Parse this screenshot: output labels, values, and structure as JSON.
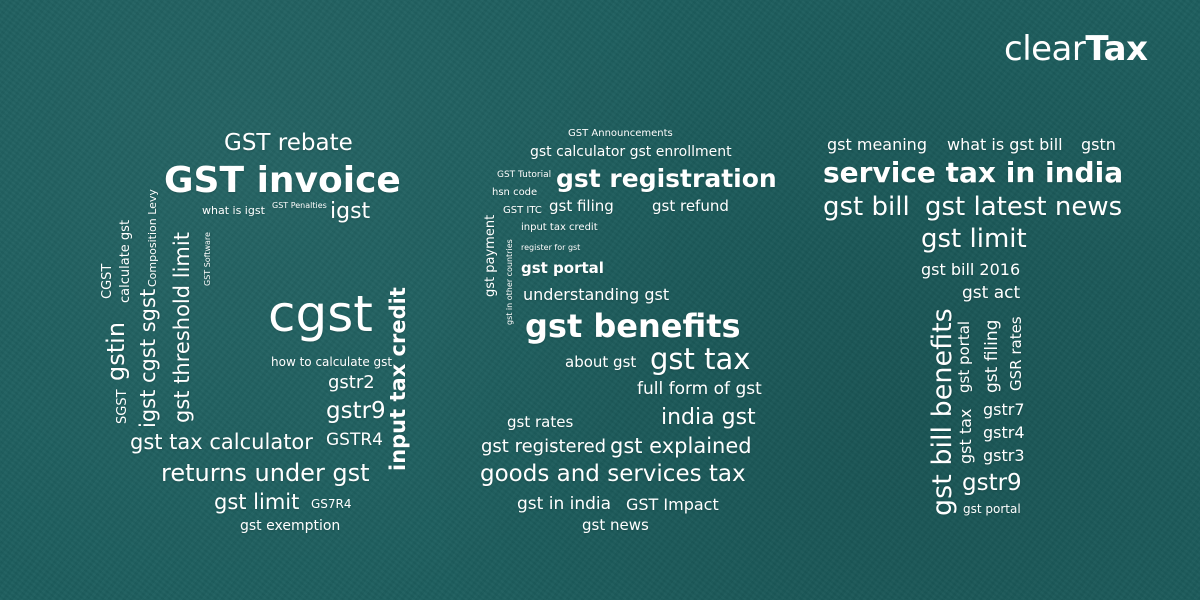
{
  "brand": {
    "light": "clear",
    "bold": "Tax"
  },
  "cloud_g": [
    "GST rebate",
    "GST invoice",
    "what is igst",
    "GST Penalties",
    "igst",
    "GST Software",
    "CGST",
    "calculate gst",
    "Composition Levy",
    "gstin",
    "igst cgst sgst",
    "gst threshold limit",
    "SGST",
    "cgst",
    "how to calculate gst",
    "input tax credit",
    "gstr2",
    "gstr9",
    "GSTR4",
    "gst tax calculator",
    "returns under gst",
    "gst limit",
    "GS7R4",
    "gst exemption"
  ],
  "cloud_s": [
    "GST Announcements",
    "gst calculator gst enrollment",
    "GST Tutorial",
    "gst registration",
    "hsn code",
    "GST ITC",
    "gst filing",
    "gst refund",
    "input tax credit",
    "register for gst",
    "gst payment",
    "gst in other countries",
    "gst portal",
    "understanding gst",
    "gst benefits",
    "about gst",
    "gst tax",
    "full form of gst",
    "gst rates",
    "india gst",
    "gst registered",
    "gst explained",
    "goods and services tax",
    "gst in india",
    "GST Impact",
    "gst news"
  ],
  "cloud_t": [
    "gst meaning",
    "what is gst bill",
    "gstn",
    "service tax in india",
    "gst bill",
    "gst latest news",
    "gst limit",
    "gst bill 2016",
    "gst act",
    "gst bill benefits",
    "gst portal",
    "gst filing",
    "GSR rates",
    "gst tax",
    "gstr7",
    "gstr4",
    "gstr3",
    "gstr9",
    "gst portal"
  ]
}
